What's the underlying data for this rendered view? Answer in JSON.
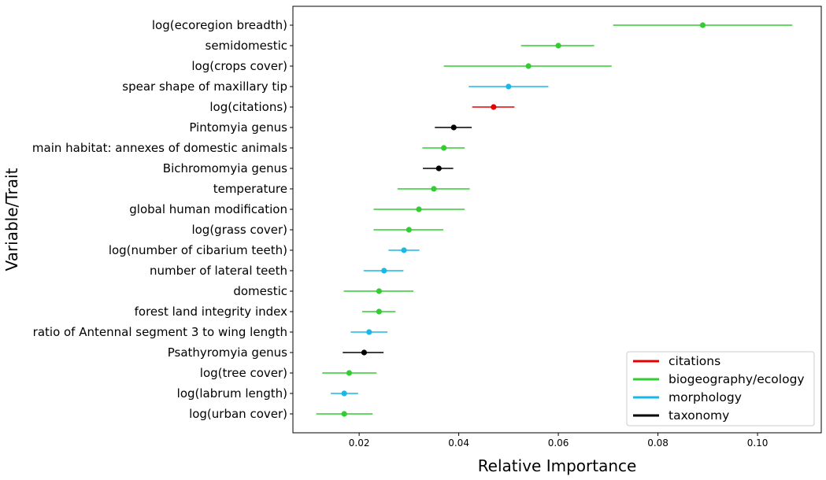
{
  "chart_data": {
    "type": "scatter",
    "xlabel": "Relative Importance",
    "ylabel": "Variable/Trait",
    "xlim": [
      0.0067,
      0.1128
    ],
    "xticks": [
      {
        "value": 0.02,
        "label": "0.02"
      },
      {
        "value": 0.04,
        "label": "0.04"
      },
      {
        "value": 0.06,
        "label": "0.06"
      },
      {
        "value": 0.08,
        "label": "0.08"
      },
      {
        "value": 0.1,
        "label": "0.10"
      }
    ],
    "grid": false,
    "legend_position": "bottom-right",
    "categories_colors": {
      "citations": "#e50000",
      "biogeography/ecology": "#33cc33",
      "morphology": "#1ab8e6",
      "taxonomy": "#000000"
    },
    "legend": [
      {
        "label": "citations",
        "category": "citations"
      },
      {
        "label": "biogeography/ecology",
        "category": "biogeography/ecology"
      },
      {
        "label": "morphology",
        "category": "morphology"
      },
      {
        "label": "taxonomy",
        "category": "taxonomy"
      }
    ],
    "points": [
      {
        "label": "log(ecoregion breadth)",
        "value": 0.089,
        "low": 0.071,
        "high": 0.107,
        "category": "biogeography/ecology"
      },
      {
        "label": "semidomestic",
        "value": 0.06,
        "low": 0.0525,
        "high": 0.0672,
        "category": "biogeography/ecology"
      },
      {
        "label": "log(crops cover)",
        "value": 0.054,
        "low": 0.037,
        "high": 0.0707,
        "category": "biogeography/ecology"
      },
      {
        "label": "spear shape of maxillary tip",
        "value": 0.05,
        "low": 0.042,
        "high": 0.058,
        "category": "morphology"
      },
      {
        "label": "log(citations)",
        "value": 0.047,
        "low": 0.0427,
        "high": 0.0512,
        "category": "citations"
      },
      {
        "label": "Pintomyia genus",
        "value": 0.039,
        "low": 0.0352,
        "high": 0.0426,
        "category": "taxonomy"
      },
      {
        "label": "main habitat: annexes of domestic animals",
        "value": 0.037,
        "low": 0.0327,
        "high": 0.0412,
        "category": "biogeography/ecology"
      },
      {
        "label": "Bichromomyia genus",
        "value": 0.036,
        "low": 0.0328,
        "high": 0.0389,
        "category": "taxonomy"
      },
      {
        "label": "temperature",
        "value": 0.035,
        "low": 0.0277,
        "high": 0.0422,
        "category": "biogeography/ecology"
      },
      {
        "label": "global human modification",
        "value": 0.032,
        "low": 0.0229,
        "high": 0.0412,
        "category": "biogeography/ecology"
      },
      {
        "label": "log(grass cover)",
        "value": 0.03,
        "low": 0.0229,
        "high": 0.0369,
        "category": "biogeography/ecology"
      },
      {
        "label": "log(number of cibarium teeth)",
        "value": 0.029,
        "low": 0.0259,
        "high": 0.0321,
        "category": "morphology"
      },
      {
        "label": "number of lateral teeth",
        "value": 0.025,
        "low": 0.0209,
        "high": 0.0289,
        "category": "morphology"
      },
      {
        "label": "domestic",
        "value": 0.024,
        "low": 0.0169,
        "high": 0.0309,
        "category": "biogeography/ecology"
      },
      {
        "label": "forest land integrity index",
        "value": 0.024,
        "low": 0.0206,
        "high": 0.0273,
        "category": "biogeography/ecology"
      },
      {
        "label": "ratio of Antennal segment 3 to wing length",
        "value": 0.022,
        "low": 0.0183,
        "high": 0.0257,
        "category": "morphology"
      },
      {
        "label": "Psathyromyia genus",
        "value": 0.021,
        "low": 0.0167,
        "high": 0.0249,
        "category": "taxonomy"
      },
      {
        "label": "log(tree cover)",
        "value": 0.018,
        "low": 0.0126,
        "high": 0.0235,
        "category": "biogeography/ecology"
      },
      {
        "label": "log(labrum length)",
        "value": 0.017,
        "low": 0.0143,
        "high": 0.0198,
        "category": "morphology"
      },
      {
        "label": "log(urban cover)",
        "value": 0.017,
        "low": 0.0114,
        "high": 0.0227,
        "category": "biogeography/ecology"
      }
    ]
  }
}
